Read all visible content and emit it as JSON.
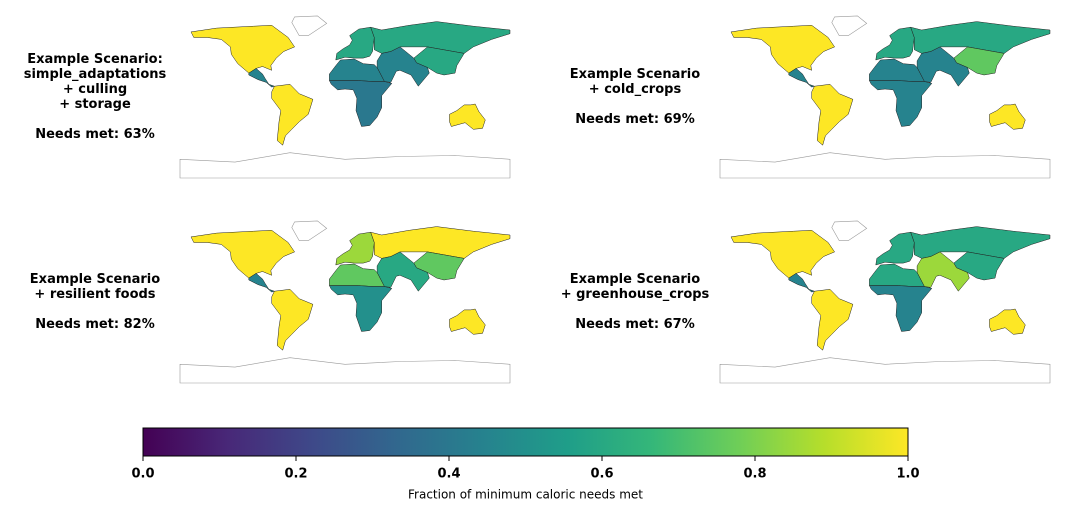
{
  "maps": [
    {
      "title_lines": [
        "Example Scenario:",
        "simple_adaptations",
        "+ culling",
        "+ storage"
      ],
      "needs_met": "Needs met: 63%",
      "region_values": [
        1.0,
        0.45,
        1.0,
        0.6,
        0.6,
        0.6,
        0.45,
        0.45,
        0.4,
        1.0
      ]
    },
    {
      "title_lines": [
        "Example Scenario",
        "+ cold_crops"
      ],
      "needs_met": "Needs met: 69%",
      "region_values": [
        1.0,
        0.45,
        1.0,
        0.6,
        0.6,
        0.75,
        0.45,
        0.45,
        0.45,
        1.0
      ]
    },
    {
      "title_lines": [
        "Example Scenario",
        "+ resilient foods"
      ],
      "needs_met": "Needs met: 82%",
      "region_values": [
        1.0,
        0.45,
        1.0,
        0.85,
        1.0,
        0.75,
        0.6,
        0.75,
        0.5,
        1.0
      ]
    },
    {
      "title_lines": [
        "Example Scenario",
        "+ greenhouse_crops"
      ],
      "needs_met": "Needs met: 67%",
      "region_values": [
        1.0,
        0.45,
        1.0,
        0.6,
        0.6,
        0.6,
        0.85,
        0.6,
        0.45,
        1.0
      ]
    }
  ],
  "colorbar": {
    "label": "Fraction of minimum caloric needs met",
    "colormap": "viridis",
    "clim": [
      0,
      1
    ],
    "ticks": [
      {
        "value": 0,
        "label": "0.0"
      },
      0.2,
      0.4,
      0.6,
      0.8,
      {
        "value": 1,
        "label": "1.0"
      }
    ]
  }
}
